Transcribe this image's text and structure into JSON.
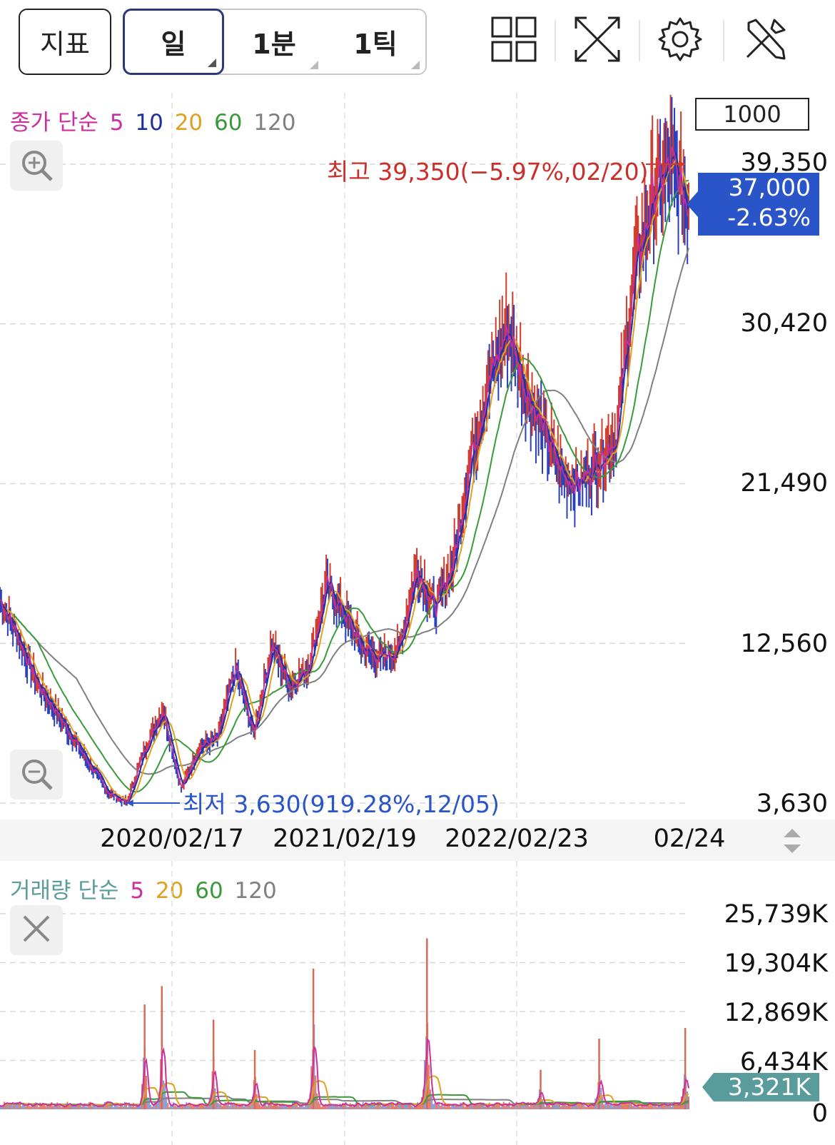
{
  "toolbar": {
    "indicator_label": "지표",
    "periods": [
      "일",
      "1분",
      "1틱"
    ],
    "active_period": "일",
    "icons": [
      "grid-layout-icon",
      "fullscreen-icon",
      "gear-icon",
      "tools-icon"
    ]
  },
  "price_panel": {
    "legend": {
      "type_label": "종가 단순",
      "ma": [
        "5",
        "10",
        "20",
        "60",
        "120"
      ]
    },
    "period_input_value": "1000",
    "y_labels": [
      "39,350",
      "30,420",
      "21,490",
      "12,560",
      "3,630"
    ],
    "current_price": "37,000",
    "current_change": "-2.63%",
    "high_annotation": "최고 39,350(−5.97%,02/20)",
    "low_annotation": "최저 3,630(919.28%,12/05)"
  },
  "x_axis": {
    "dates": [
      "2020/02/17",
      "2021/02/19",
      "2022/02/23",
      "02/24"
    ]
  },
  "volume_panel": {
    "legend": {
      "type_label": "거래량 단순",
      "ma": [
        "5",
        "20",
        "60",
        "120"
      ]
    },
    "y_labels": [
      "25,739K",
      "19,304K",
      "12,869K",
      "6,434K",
      "0"
    ],
    "current_volume": "3,321K"
  },
  "colors": {
    "ma5": "#cc2ea0",
    "ma10": "#1e2fa0",
    "ma20": "#e0a020",
    "ma60": "#3a9a3a",
    "ma120": "#808080",
    "up": "#d23a2a",
    "down": "#2a3fc0",
    "accent": "#2a55c9",
    "volume_accent": "#5a9b9b"
  },
  "chart_data": {
    "type": "line",
    "title": "",
    "y_range": [
      3630,
      39350
    ],
    "x_ticks": [
      "2020/02/17",
      "2021/02/19",
      "2022/02/23",
      "02/24"
    ],
    "series": [
      {
        "name": "종가",
        "x": [
          "start",
          "",
          "",
          "",
          "",
          "",
          "",
          "",
          "2020/02/17",
          "",
          "",
          "",
          "",
          "2021/02/19",
          "",
          "",
          "",
          "",
          "",
          "",
          "2022/02/23",
          "",
          "",
          "",
          "",
          "",
          "",
          "",
          "",
          "",
          "",
          "",
          "",
          "",
          "",
          "",
          "",
          "",
          "02/24"
        ],
        "values": [
          15000,
          12900,
          10400,
          8900,
          7300,
          5700,
          4200,
          3630,
          6700,
          8900,
          4400,
          6800,
          7200,
          11200,
          7500,
          12500,
          10200,
          11200,
          15800,
          14200,
          12300,
          11700,
          12200,
          16800,
          14500,
          17000,
          23200,
          27300,
          30200,
          26800,
          24400,
          22000,
          21500,
          22800,
          24200,
          33300,
          37500,
          39350,
          37000
        ]
      }
    ],
    "high": {
      "value": 39350,
      "pct": "-5.97%",
      "date": "02/20"
    },
    "low": {
      "value": 3630,
      "pct": "919.28%",
      "date": "12/05"
    },
    "current": 37000,
    "volume": {
      "y_range": [
        0,
        25739
      ],
      "unit": "K",
      "current": 3321,
      "spikes": [
        {
          "date_pos": 0.21,
          "value": 13800
        },
        {
          "date_pos": 0.235,
          "value": 16200
        },
        {
          "date_pos": 0.31,
          "value": 11800
        },
        {
          "date_pos": 0.37,
          "value": 7800
        },
        {
          "date_pos": 0.455,
          "value": 18500
        },
        {
          "date_pos": 0.62,
          "value": 22500
        },
        {
          "date_pos": 0.785,
          "value": 5200
        },
        {
          "date_pos": 0.87,
          "value": 9300
        },
        {
          "date_pos": 0.995,
          "value": 10700
        }
      ]
    }
  }
}
